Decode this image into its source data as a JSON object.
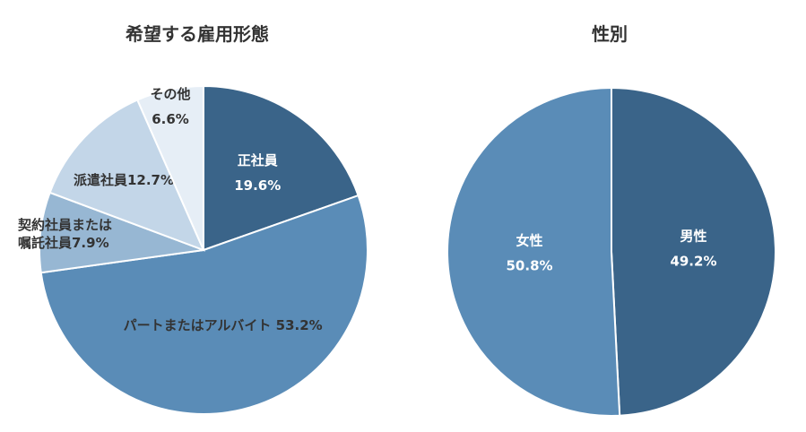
{
  "chart_data": [
    {
      "type": "pie",
      "title": "希望する雇用形態",
      "slices": [
        {
          "label": "正社員",
          "value": 19.6,
          "value_label": "19.6%",
          "color": "#3a6489"
        },
        {
          "label": "パートまたはアルバイト",
          "value": 53.2,
          "value_label": "53.2%",
          "color": "#5a8cb7"
        },
        {
          "label": "契約社員または嘱託社員",
          "label_lines": [
            "契約社員または",
            "嘱託社員"
          ],
          "value": 7.9,
          "value_label": "7.9%",
          "color": "#97b7d3"
        },
        {
          "label": "派遣社員",
          "value": 12.7,
          "value_label": "12.7%",
          "color": "#c3d6e8"
        },
        {
          "label": "その他",
          "value": 6.6,
          "value_label": "6.6%",
          "color": "#e6eef6"
        }
      ]
    },
    {
      "type": "pie",
      "title": "性別",
      "slices": [
        {
          "label": "男性",
          "value": 49.2,
          "value_label": "49.2%",
          "color": "#3a6489"
        },
        {
          "label": "女性",
          "value": 50.8,
          "value_label": "50.8%",
          "color": "#5a8cb7"
        }
      ]
    }
  ]
}
